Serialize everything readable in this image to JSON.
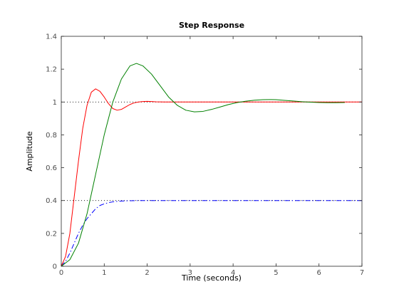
{
  "chart_data": {
    "type": "line",
    "title": "Step Response",
    "xlabel": "Time (seconds)",
    "ylabel": "Amplitude",
    "xlim": [
      0,
      7
    ],
    "ylim": [
      0,
      1.4
    ],
    "x_ticks": [
      "0",
      "1",
      "2",
      "3",
      "4",
      "5",
      "6",
      "7"
    ],
    "y_ticks": [
      "0",
      "0.2",
      "0.4",
      "0.6",
      "0.8",
      "1",
      "1.2",
      "1.4"
    ],
    "grid": false,
    "reference_lines": [
      {
        "y": 1.0,
        "color": "#000000",
        "style": "dotted"
      },
      {
        "y": 0.4,
        "color": "#000000",
        "style": "dotted"
      }
    ],
    "series": [
      {
        "color": "#0000ff",
        "style": "dashdot",
        "x": [
          0,
          0.1,
          0.2,
          0.3,
          0.4,
          0.5,
          0.6,
          0.7,
          0.8,
          0.9,
          1.0,
          1.1,
          1.2,
          1.3,
          1.4,
          1.5,
          1.6,
          1.7,
          1.8,
          2.0,
          2.2,
          2.5,
          3.0,
          4.0,
          5.0,
          6.0,
          7.0
        ],
        "y": [
          0,
          0.03,
          0.08,
          0.14,
          0.2,
          0.25,
          0.29,
          0.32,
          0.35,
          0.37,
          0.38,
          0.387,
          0.392,
          0.395,
          0.397,
          0.398,
          0.399,
          0.3995,
          0.4,
          0.4,
          0.4,
          0.4,
          0.4,
          0.4,
          0.4,
          0.4,
          0.4
        ]
      },
      {
        "color": "#ff0000",
        "style": "solid",
        "x": [
          0,
          0.1,
          0.2,
          0.3,
          0.4,
          0.5,
          0.6,
          0.7,
          0.8,
          0.9,
          1.0,
          1.1,
          1.2,
          1.3,
          1.4,
          1.5,
          1.6,
          1.7,
          1.8,
          1.9,
          2.0,
          2.1,
          2.2,
          2.4,
          2.6,
          3.0,
          4.0,
          5.0,
          6.0,
          7.0
        ],
        "y": [
          0,
          0.06,
          0.2,
          0.42,
          0.64,
          0.84,
          0.98,
          1.06,
          1.08,
          1.065,
          1.03,
          0.99,
          0.96,
          0.95,
          0.955,
          0.97,
          0.985,
          0.995,
          1.0,
          1.003,
          1.004,
          1.003,
          1.001,
          1.0,
          1.0,
          1.0,
          1.0,
          1.0,
          1.0,
          1.0
        ]
      },
      {
        "color": "#008000",
        "style": "solid",
        "x": [
          0,
          0.2,
          0.4,
          0.6,
          0.8,
          1.0,
          1.2,
          1.4,
          1.6,
          1.75,
          1.9,
          2.1,
          2.3,
          2.5,
          2.7,
          2.9,
          3.1,
          3.3,
          3.5,
          3.7,
          3.9,
          4.1,
          4.3,
          4.5,
          4.7,
          4.85,
          5.0,
          5.2,
          5.4,
          5.6,
          5.8,
          6.0,
          6.2,
          6.4,
          6.6
        ],
        "y": [
          0,
          0.04,
          0.14,
          0.32,
          0.56,
          0.8,
          1.0,
          1.14,
          1.22,
          1.235,
          1.22,
          1.17,
          1.1,
          1.03,
          0.98,
          0.95,
          0.94,
          0.943,
          0.955,
          0.97,
          0.985,
          0.997,
          1.005,
          1.011,
          1.014,
          1.015,
          1.014,
          1.01,
          1.006,
          1.002,
          0.999,
          0.997,
          0.996,
          0.996,
          0.997
        ]
      }
    ]
  }
}
